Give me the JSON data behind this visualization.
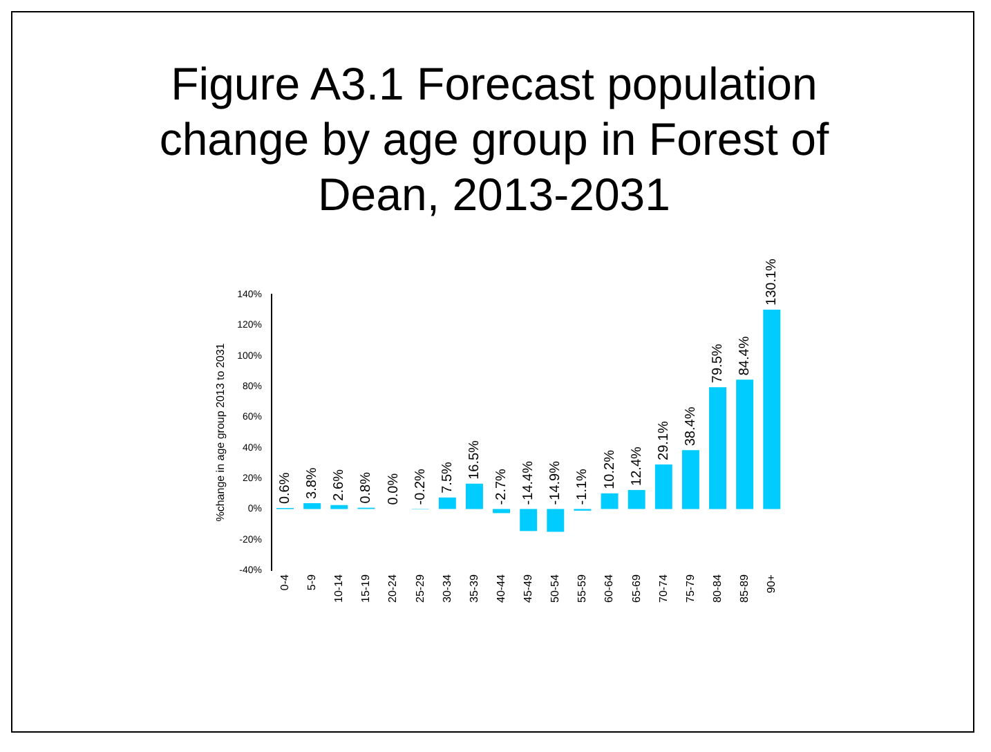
{
  "chart_data": {
    "type": "bar",
    "title": "Figure A3.1 Forecast population change by age group in Forest of Dean, 2013-2031",
    "ylabel": "%change in age group 2013 to 2031",
    "categories": [
      "0-4",
      "5-9",
      "10-14",
      "15-19",
      "20-24",
      "25-29",
      "30-34",
      "35-39",
      "40-44",
      "45-49",
      "50-54",
      "55-59",
      "60-64",
      "65-69",
      "70-74",
      "75-79",
      "80-84",
      "85-89",
      "90+"
    ],
    "values": [
      0.6,
      3.8,
      2.6,
      0.8,
      0.0,
      -0.2,
      7.5,
      16.5,
      -2.7,
      -14.4,
      -14.9,
      -1.1,
      10.2,
      12.4,
      29.1,
      38.4,
      79.5,
      84.4,
      130.1
    ],
    "value_labels": [
      "0.6%",
      "3.8%",
      "2.6%",
      "0.8%",
      "0.0%",
      "-0.2%",
      "7.5%",
      "16.5%",
      "-2.7%",
      "-14.4%",
      "-14.9%",
      "-1.1%",
      "10.2%",
      "12.4%",
      "29.1%",
      "38.4%",
      "79.5%",
      "84.4%",
      "130.1%"
    ],
    "color": "#00ccff",
    "grid": false,
    "legend": false,
    "ylim": [
      -40,
      140
    ],
    "yticks": [
      {
        "value": -40,
        "label": "-40%"
      },
      {
        "value": -20,
        "label": "-20%"
      },
      {
        "value": 0,
        "label": "0%"
      },
      {
        "value": 20,
        "label": "20%"
      },
      {
        "value": 40,
        "label": "40%"
      },
      {
        "value": 60,
        "label": "60%"
      },
      {
        "value": 80,
        "label": "80%"
      },
      {
        "value": 100,
        "label": "100%"
      },
      {
        "value": 120,
        "label": "120%"
      },
      {
        "value": 140,
        "label": "140%"
      }
    ]
  }
}
